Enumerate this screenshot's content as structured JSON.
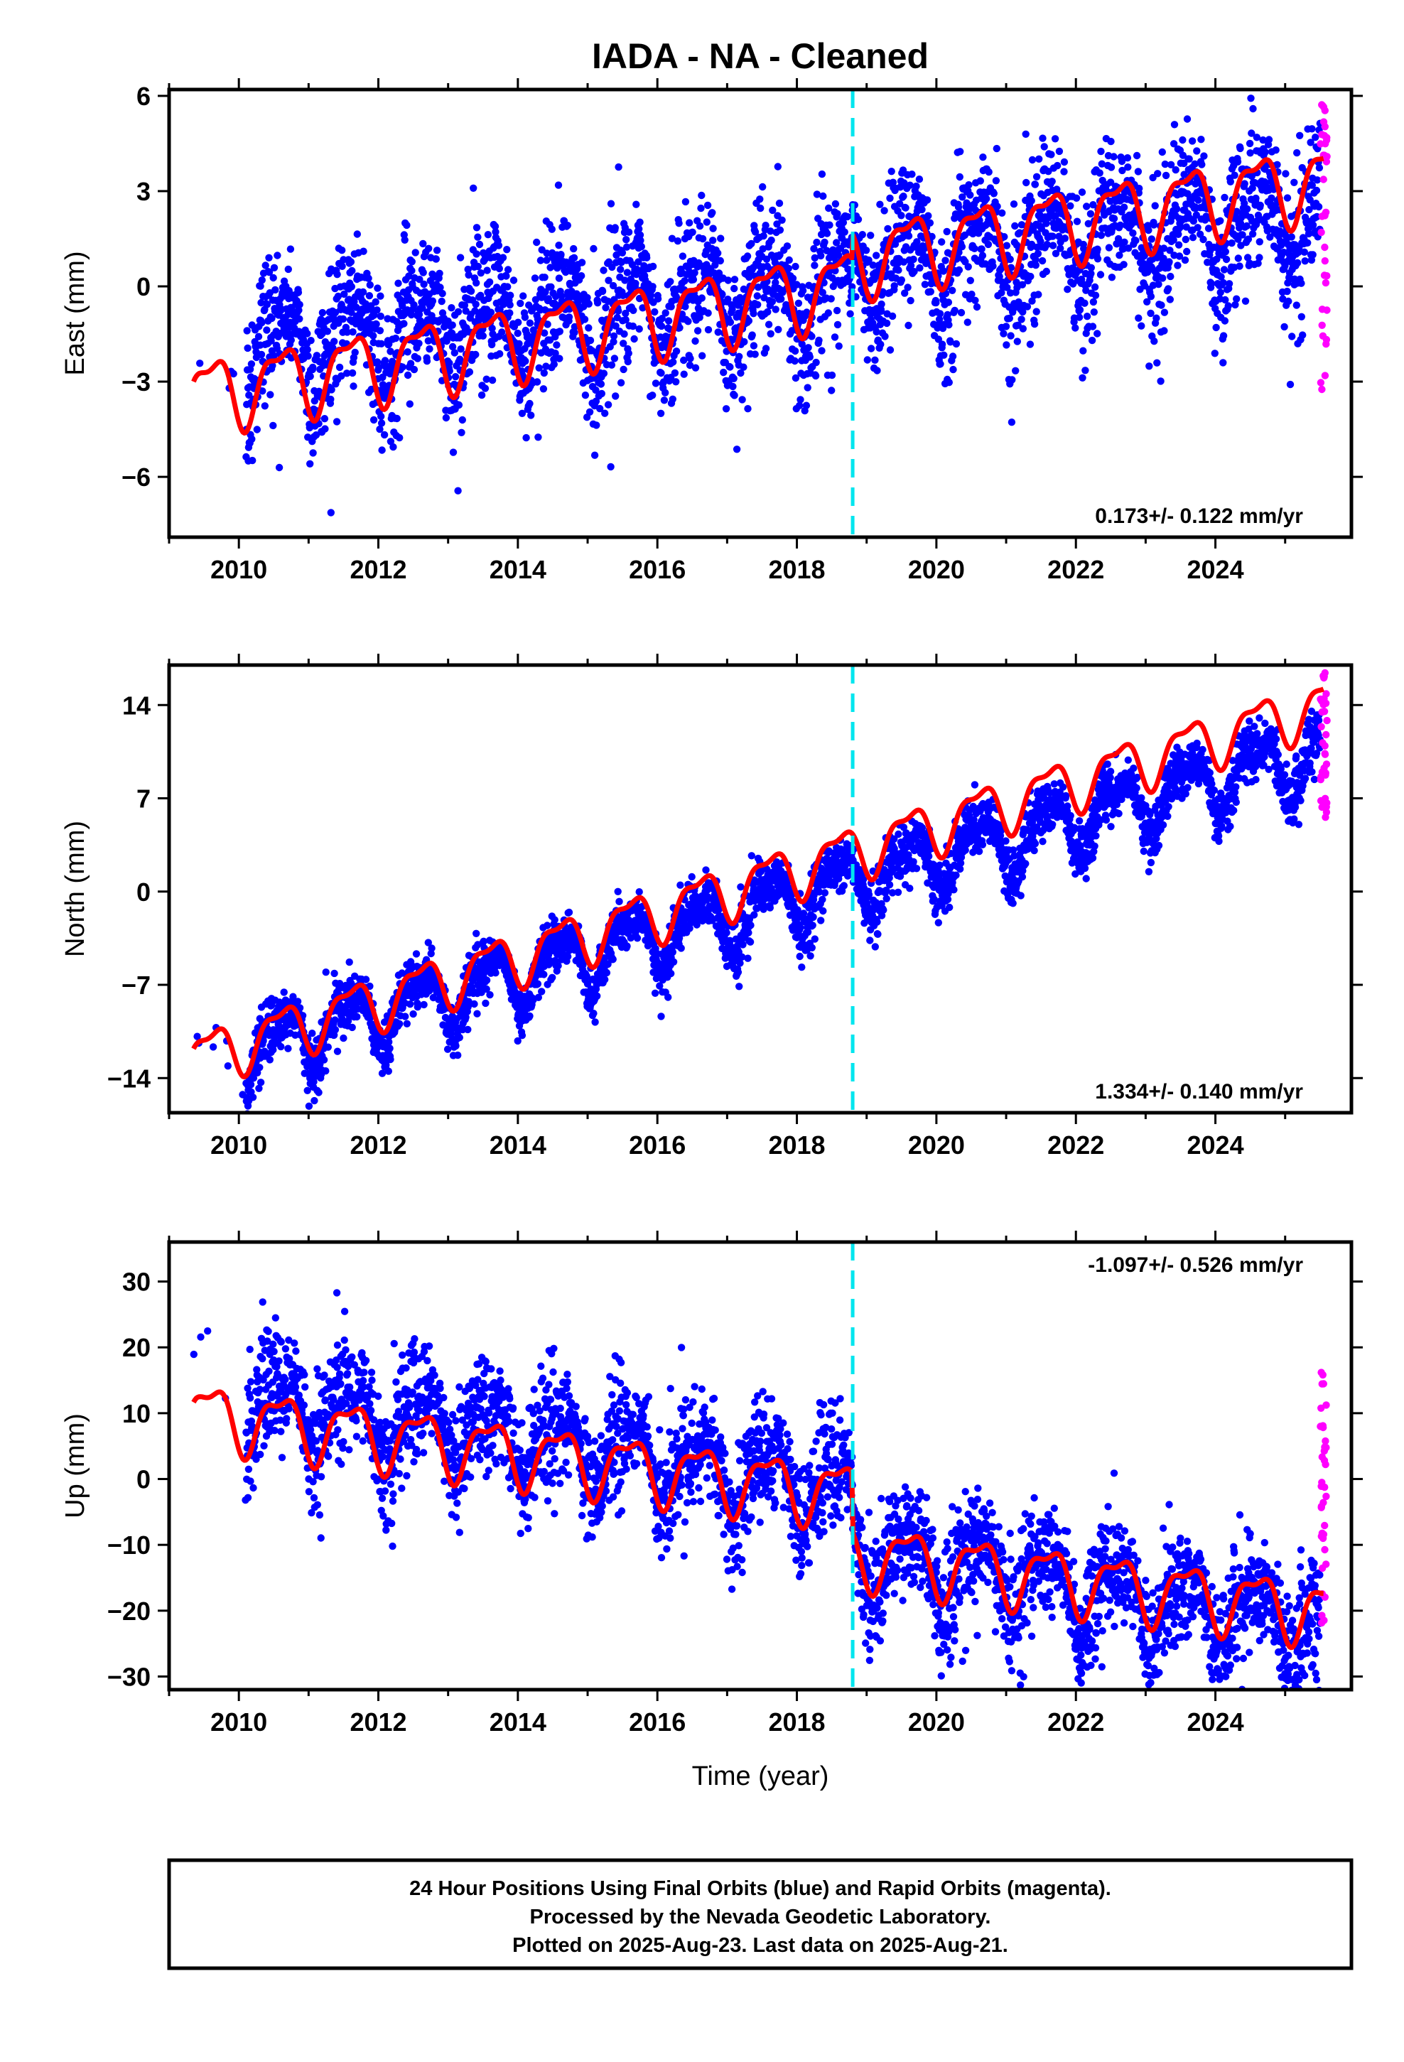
{
  "title": "IADA  - NA - Cleaned",
  "xlabel": "Time (year)",
  "colors": {
    "final_orbits": "#0000ff",
    "rapid_orbits": "#ff00ff",
    "model_fit": "#ff0000",
    "equipment_change": "#00e5ee",
    "frame": "#000000"
  },
  "footer": {
    "line1": "24 Hour Positions Using Final Orbits (blue) and Rapid Orbits (magenta).",
    "line2": "Processed by the Nevada Geodetic Laboratory.",
    "line3": "Plotted on 2025-Aug-23. Last data on 2025-Aug-21."
  },
  "chart_data": [
    {
      "type": "scatter",
      "ylabel": "East (mm)",
      "rate_label": "0.173+/- 0.122 mm/yr",
      "rate_position": "bottom-right",
      "xlim": [
        2009.0,
        2025.95
      ],
      "ylim": [
        -7.9,
        6.2
      ],
      "x_ticks": [
        2010,
        2012,
        2014,
        2016,
        2018,
        2020,
        2022,
        2024
      ],
      "y_ticks": [
        -6,
        -3,
        0,
        3,
        6
      ],
      "equipment_change_x": 2018.8,
      "grid": false,
      "series": [
        {
          "name": "Final Orbits (blue)",
          "color": "#0000ff",
          "x_range": [
            2009.35,
            2025.5
          ],
          "trend_start": -2.1,
          "trend_end": 1.5,
          "step_at": 2018.8,
          "step": 0.8,
          "annual_amp": 1.2,
          "noise_sd": 1.05
        },
        {
          "name": "Rapid Orbits (magenta)",
          "color": "#ff00ff",
          "x_range": [
            2025.5,
            2025.6
          ],
          "y_range": [
            -4.9,
            5.8
          ]
        }
      ],
      "fit": {
        "start": -3.4,
        "end": 2.6
      }
    },
    {
      "type": "scatter",
      "ylabel": "North (mm)",
      "rate_label": "1.334+/- 0.140 mm/yr",
      "rate_position": "bottom-right",
      "xlim": [
        2009.0,
        2025.95
      ],
      "ylim": [
        -16.6,
        17.0
      ],
      "x_ticks": [
        2010,
        2012,
        2014,
        2016,
        2018,
        2020,
        2022,
        2024
      ],
      "y_ticks": [
        -14,
        -7,
        0,
        7,
        14
      ],
      "equipment_change_x": 2018.8,
      "grid": false,
      "series": [
        {
          "name": "Final Orbits (blue)",
          "color": "#0000ff",
          "x_range": [
            2009.35,
            2025.5
          ],
          "trend_start": -13.0,
          "trend_end": 10.5,
          "step_at": 2018.8,
          "step": 0.0,
          "annual_amp": 2.1,
          "noise_sd": 0.95
        },
        {
          "name": "Rapid Orbits (magenta)",
          "color": "#ff00ff",
          "x_range": [
            2025.5,
            2025.6
          ],
          "y_range": [
            5.5,
            16.5
          ]
        }
      ],
      "fit": {
        "start": -12.5,
        "end": 14.1
      }
    },
    {
      "type": "scatter",
      "ylabel": "Up (mm)",
      "rate_label": "-1.097+/- 0.526 mm/yr",
      "rate_position": "top-right",
      "xlim": [
        2009.0,
        2025.95
      ],
      "ylim": [
        -32.0,
        36.0
      ],
      "x_ticks": [
        2010,
        2012,
        2014,
        2016,
        2018,
        2020,
        2022,
        2024
      ],
      "y_ticks": [
        -30,
        -20,
        -10,
        0,
        10,
        20,
        30
      ],
      "equipment_change_x": 2018.8,
      "grid": false,
      "series": [
        {
          "name": "Final Orbits (blue)",
          "color": "#0000ff",
          "x_range": [
            2009.35,
            2025.5
          ],
          "trend_start": 14.0,
          "trend_end": -13.5,
          "step_at": 2018.8,
          "step": -9.0,
          "annual_amp": 5.0,
          "noise_sd": 4.0
        },
        {
          "name": "Rapid Orbits (magenta)",
          "color": "#ff00ff",
          "x_range": [
            2025.5,
            2025.6
          ],
          "y_range": [
            -23.0,
            16.5
          ]
        }
      ],
      "fit": {
        "start": 10.0,
        "end": -11.0
      }
    }
  ]
}
